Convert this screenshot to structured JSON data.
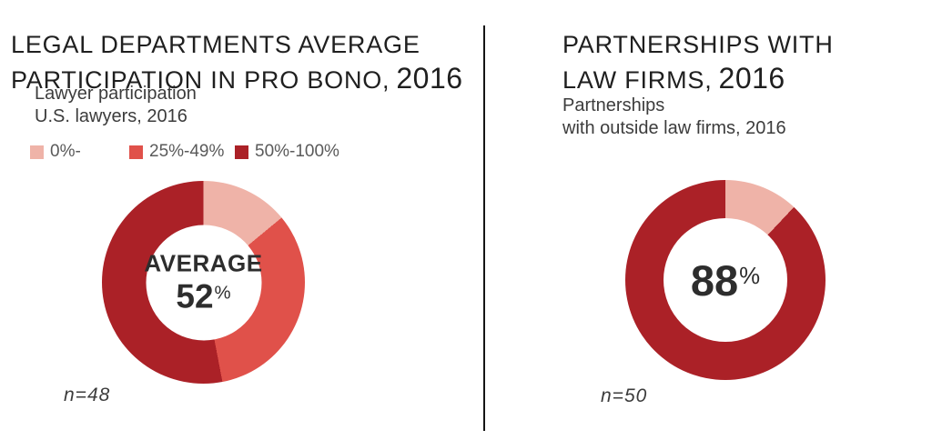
{
  "left": {
    "title_line1": "LEGAL DEPARTMENTS AVERAGE",
    "title_line2": "PARTICIPATION IN PRO BONO,",
    "title_year": "2016",
    "subtitle_line1": "Lawyer participation",
    "subtitle_line2": "U.S. lawyers, 2016"
  },
  "right": {
    "title_line1": "PARTNERSHIPS WITH",
    "title_line2": "LAW FIRMS,",
    "title_year": "2016",
    "subtitle_line1": "Partnerships",
    "subtitle_line2": "with outside law firms, 2016"
  },
  "colors": {
    "pink": "#efb3a8",
    "medium_red": "#e0514a",
    "dark_red": "#ab2127",
    "divider": "#141414",
    "text_dark": "#1f1f1f"
  },
  "chart_data": [
    {
      "type": "pie",
      "variant": "donut",
      "title": "LEGAL DEPARTMENTS AVERAGE PARTICIPATION IN PRO BONO, 2016",
      "subtitle": "Lawyer participation U.S. lawyers, 2016",
      "center_label": "AVERAGE",
      "center_value": "52",
      "center_unit": "%",
      "sample_label": "n=48",
      "start_angle": "top",
      "direction": "clockwise",
      "legend_position": "top",
      "segments": [
        {
          "label": "0%-",
          "value": 14,
          "color": "#efb3a8"
        },
        {
          "label": "25%-49%",
          "value": 33,
          "color": "#e0514a"
        },
        {
          "label": "50%-100%",
          "value": 53,
          "color": "#ab2127"
        }
      ]
    },
    {
      "type": "pie",
      "variant": "donut",
      "title": "PARTNERSHIPS WITH LAW FIRMS, 2016",
      "subtitle": "Partnerships with outside law firms, 2016",
      "center_label": "",
      "center_value": "88",
      "center_unit": "%",
      "sample_label": "n=50",
      "start_angle": "top",
      "direction": "clockwise",
      "legend_position": "none",
      "segments": [
        {
          "label": "",
          "value": 12,
          "color": "#efb3a8"
        },
        {
          "label": "Partnerships with outside law firms",
          "value": 88,
          "color": "#ab2127"
        }
      ]
    }
  ]
}
